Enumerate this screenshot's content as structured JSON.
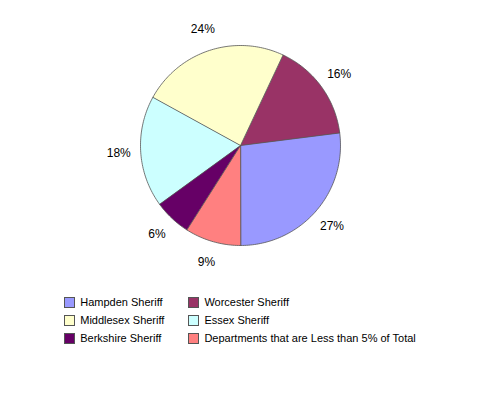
{
  "chart_data": {
    "type": "pie",
    "categories": [
      "Hampden Sheriff",
      "Worcester Sheriff",
      "Middlesex Sheriff",
      "Essex Sheriff",
      "Berkshire Sheriff",
      "Departments that are Less than 5% of Total"
    ],
    "values": [
      27,
      16,
      24,
      18,
      6,
      9
    ],
    "value_labels": [
      "27%",
      "16%",
      "24%",
      "18%",
      "6%",
      "9%"
    ],
    "colors": [
      "#9999ff",
      "#993366",
      "#ffffcc",
      "#ccffff",
      "#660066",
      "#ff8080"
    ],
    "data_labels": true,
    "legend": "bottom"
  }
}
